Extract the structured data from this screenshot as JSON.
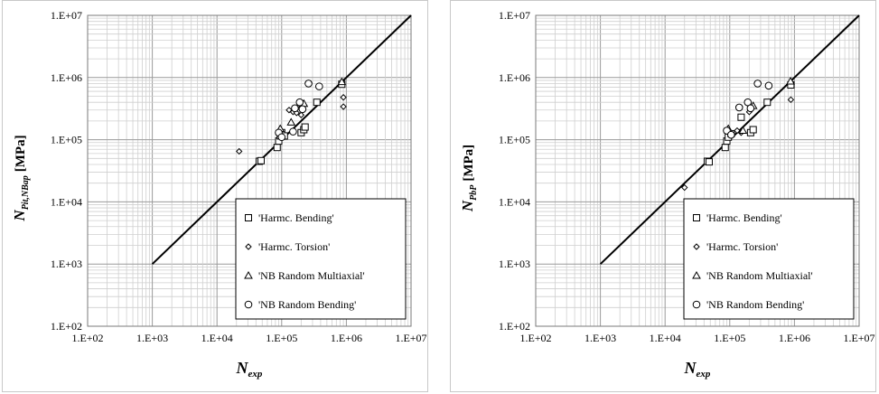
{
  "chart_data": [
    {
      "type": "scatter",
      "log_x": true,
      "log_y": true,
      "xlim": [
        100,
        10000000
      ],
      "ylim": [
        100,
        10000000
      ],
      "x_ticks": [
        "1.E+02",
        "1.E+03",
        "1.E+04",
        "1.E+05",
        "1.E+06",
        "1.E+07"
      ],
      "y_ticks": [
        "1.E+02",
        "1.E+03",
        "1.E+04",
        "1.E+05",
        "1.E+06",
        "1.E+07"
      ],
      "xlabel_main": "N",
      "xlabel_sub": "exp",
      "ylabel_main": "N",
      "ylabel_sub": "Pit,NBap",
      "ylabel_unit": "[MPa]",
      "grid": true,
      "legend_position": "bottom-right",
      "reference_line": {
        "x": [
          1000,
          10000000
        ],
        "y": [
          1000,
          10000000
        ]
      },
      "series": [
        {
          "name": "'Harmc. Bending'",
          "marker": "square",
          "points": [
            [
              45000,
              45000
            ],
            [
              48000,
              46000
            ],
            [
              85000,
              75000
            ],
            [
              90000,
              95000
            ],
            [
              95000,
              115000
            ],
            [
              100000,
              130000
            ],
            [
              110000,
              115000
            ],
            [
              200000,
              130000
            ],
            [
              220000,
              145000
            ],
            [
              230000,
              160000
            ],
            [
              350000,
              400000
            ],
            [
              850000,
              780000
            ]
          ]
        },
        {
          "name": "'Harmc. Torsion'",
          "marker": "diamond",
          "points": [
            [
              22000,
              65000
            ],
            [
              130000,
              300000
            ],
            [
              150000,
              280000
            ],
            [
              170000,
              270000
            ],
            [
              200000,
              250000
            ],
            [
              900000,
              480000
            ],
            [
              900000,
              340000
            ]
          ]
        },
        {
          "name": "'NB Random Multiaxial'",
          "marker": "triangle",
          "points": [
            [
              95000,
              150000
            ],
            [
              140000,
              190000
            ],
            [
              200000,
              340000
            ],
            [
              220000,
              380000
            ],
            [
              850000,
              850000
            ]
          ]
        },
        {
          "name": "'NB Random Bending'",
          "marker": "circle",
          "points": [
            [
              90000,
              130000
            ],
            [
              100000,
              110000
            ],
            [
              150000,
              135000
            ],
            [
              160000,
              320000
            ],
            [
              190000,
              400000
            ],
            [
              210000,
              310000
            ],
            [
              260000,
              800000
            ],
            [
              380000,
              720000
            ]
          ]
        }
      ]
    },
    {
      "type": "scatter",
      "log_x": true,
      "log_y": true,
      "xlim": [
        100,
        10000000
      ],
      "ylim": [
        100,
        10000000
      ],
      "x_ticks": [
        "1.E+02",
        "1.E+03",
        "1.E+04",
        "1.E+05",
        "1.E+06",
        "1.E+07"
      ],
      "y_ticks": [
        "1.E+02",
        "1.E+03",
        "1.E+04",
        "1.E+05",
        "1.E+06",
        "1.E+07"
      ],
      "xlabel_main": "N",
      "xlabel_sub": "exp",
      "ylabel_main": "N",
      "ylabel_sub": "PbP",
      "ylabel_unit": "[MPa]",
      "grid": true,
      "legend_position": "bottom-right",
      "reference_line": {
        "x": [
          1000,
          10000000
        ],
        "y": [
          1000,
          10000000
        ]
      },
      "series": [
        {
          "name": "'Harmc. Bending'",
          "marker": "square",
          "points": [
            [
              45000,
              45000
            ],
            [
              48000,
              44000
            ],
            [
              85000,
              75000
            ],
            [
              90000,
              95000
            ],
            [
              95000,
              110000
            ],
            [
              105000,
              125000
            ],
            [
              150000,
              230000
            ],
            [
              210000,
              130000
            ],
            [
              230000,
              145000
            ],
            [
              380000,
              400000
            ],
            [
              880000,
              760000
            ]
          ]
        },
        {
          "name": "'Harmc. Torsion'",
          "marker": "diamond",
          "points": [
            [
              20000,
              17000
            ],
            [
              130000,
              140000
            ],
            [
              150000,
              130000
            ],
            [
              200000,
              280000
            ],
            [
              880000,
              440000
            ]
          ]
        },
        {
          "name": "'NB Random Multiaxial'",
          "marker": "triangle",
          "points": [
            [
              95000,
              150000
            ],
            [
              160000,
              140000
            ],
            [
              230000,
              350000
            ],
            [
              870000,
              870000
            ]
          ]
        },
        {
          "name": "'NB Random Bending'",
          "marker": "circle",
          "points": [
            [
              90000,
              140000
            ],
            [
              105000,
              120000
            ],
            [
              140000,
              330000
            ],
            [
              190000,
              400000
            ],
            [
              210000,
              320000
            ],
            [
              270000,
              800000
            ],
            [
              400000,
              740000
            ]
          ]
        }
      ]
    }
  ]
}
